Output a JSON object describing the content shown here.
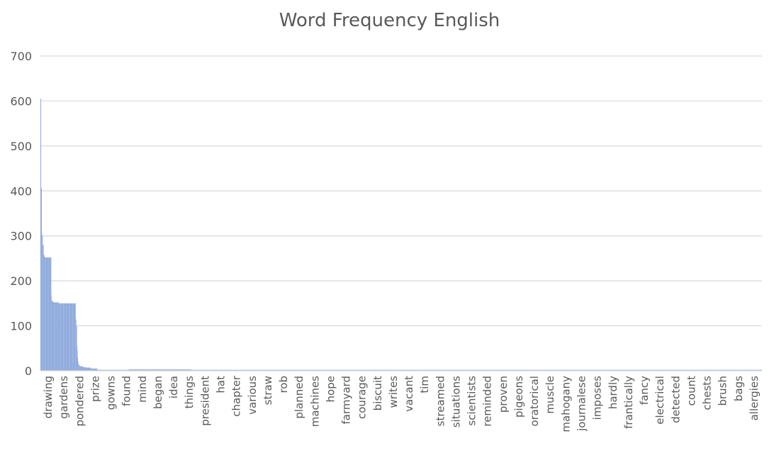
{
  "chart_data": {
    "type": "bar",
    "title": "Word Frequency English",
    "xlabel": "",
    "ylabel": "",
    "ylim": [
      0,
      700
    ],
    "yticks": [
      0,
      100,
      200,
      300,
      400,
      500,
      600,
      700
    ],
    "grid": true,
    "legend": "none",
    "bar_color": "#8faadc",
    "x_tick_labels": [
      "drawing",
      "gardens",
      "pondered",
      "prize",
      "gowns",
      "found",
      "mind",
      "began",
      "idea",
      "things",
      "president",
      "hat",
      "chapter",
      "various",
      "straw",
      "rob",
      "planned",
      "machines",
      "hope",
      "farmyard",
      "courage",
      "biscuit",
      "writes",
      "vacant",
      "tim",
      "streamed",
      "situations",
      "scientists",
      "reminded",
      "proven",
      "pigeons",
      "oratorical",
      "muscle",
      "mahogany",
      "journalese",
      "imposes",
      "hardly",
      "frantically",
      "fancy",
      "electrical",
      "detected",
      "count",
      "chests",
      "brush",
      "bags",
      "allergies"
    ],
    "segments": [
      {
        "count": 2,
        "value": 605
      },
      {
        "count": 1,
        "value": 407
      },
      {
        "count": 1,
        "value": 405
      },
      {
        "count": 1,
        "value": 305
      },
      {
        "count": 2,
        "value": 300
      },
      {
        "count": 3,
        "value": 280
      },
      {
        "count": 2,
        "value": 258
      },
      {
        "count": 2,
        "value": 254
      },
      {
        "count": 20,
        "value": 252
      },
      {
        "count": 1,
        "value": 168
      },
      {
        "count": 1,
        "value": 158
      },
      {
        "count": 3,
        "value": 155
      },
      {
        "count": 3,
        "value": 153
      },
      {
        "count": 16,
        "value": 152
      },
      {
        "count": 53,
        "value": 150
      },
      {
        "count": 1,
        "value": 117
      },
      {
        "count": 1,
        "value": 113
      },
      {
        "count": 2,
        "value": 100
      },
      {
        "count": 1,
        "value": 55
      },
      {
        "count": 1,
        "value": 45
      },
      {
        "count": 1,
        "value": 30
      },
      {
        "count": 1,
        "value": 22
      },
      {
        "count": 2,
        "value": 16
      },
      {
        "count": 3,
        "value": 12
      },
      {
        "count": 10,
        "value": 10
      },
      {
        "count": 10,
        "value": 8
      },
      {
        "count": 15,
        "value": 7
      },
      {
        "count": 20,
        "value": 5
      },
      {
        "count": 100,
        "value": 2
      },
      {
        "count": 196,
        "value": 3
      },
      {
        "count": 1800,
        "value": 2
      }
    ]
  }
}
